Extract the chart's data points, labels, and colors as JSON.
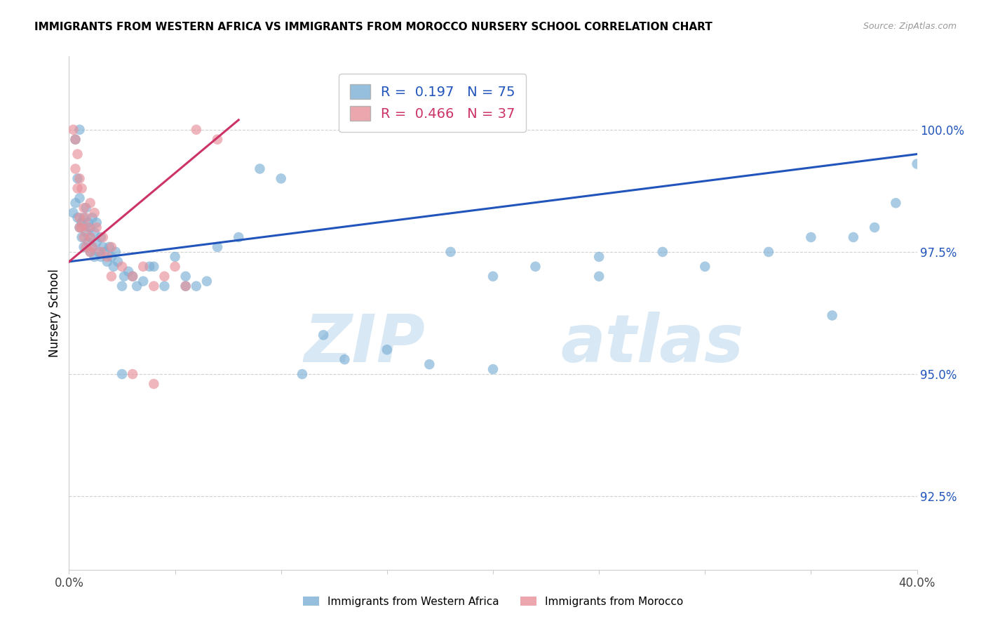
{
  "title": "IMMIGRANTS FROM WESTERN AFRICA VS IMMIGRANTS FROM MOROCCO NURSERY SCHOOL CORRELATION CHART",
  "source": "Source: ZipAtlas.com",
  "ylabel": "Nursery School",
  "yticks": [
    92.5,
    95.0,
    97.5,
    100.0
  ],
  "ytick_labels": [
    "92.5%",
    "95.0%",
    "97.5%",
    "100.0%"
  ],
  "xlim": [
    0.0,
    40.0
  ],
  "ylim": [
    91.0,
    101.5
  ],
  "blue_R": "0.197",
  "blue_N": "75",
  "pink_R": "0.466",
  "pink_N": "37",
  "blue_color": "#7bafd4",
  "pink_color": "#e8909a",
  "blue_line_color": "#2255bb",
  "pink_line_color": "#cc3366",
  "watermark_color": "#d8e8f5",
  "grid_color": "#cccccc",
  "blue_line_x0": 0.0,
  "blue_line_y0": 97.3,
  "blue_line_x1": 40.0,
  "blue_line_y1": 99.5,
  "pink_line_x0": 0.0,
  "pink_line_y0": 97.3,
  "pink_line_x1": 8.0,
  "pink_line_y1": 100.2,
  "blue_x": [
    0.2,
    0.3,
    0.3,
    0.4,
    0.4,
    0.5,
    0.5,
    0.5,
    0.6,
    0.6,
    0.7,
    0.7,
    0.8,
    0.8,
    0.9,
    0.9,
    1.0,
    1.0,
    1.0,
    1.1,
    1.1,
    1.2,
    1.2,
    1.3,
    1.3,
    1.4,
    1.5,
    1.5,
    1.6,
    1.7,
    1.8,
    1.9,
    2.0,
    2.1,
    2.2,
    2.3,
    2.5,
    2.6,
    2.8,
    3.0,
    3.2,
    3.5,
    4.0,
    4.5,
    5.0,
    5.5,
    6.0,
    6.5,
    7.0,
    8.0,
    9.0,
    10.0,
    11.0,
    12.0,
    13.0,
    15.0,
    17.0,
    18.0,
    20.0,
    22.0,
    25.0,
    28.0,
    30.0,
    33.0,
    35.0,
    36.0,
    37.0,
    38.0,
    39.0,
    40.0,
    2.5,
    3.8,
    5.5,
    20.0,
    25.0
  ],
  "blue_y": [
    98.3,
    98.5,
    99.8,
    98.2,
    99.0,
    98.0,
    98.6,
    100.0,
    98.1,
    97.8,
    98.2,
    97.6,
    97.9,
    98.4,
    97.7,
    98.1,
    97.5,
    98.0,
    97.8,
    97.6,
    98.2,
    97.4,
    97.9,
    97.7,
    98.1,
    97.5,
    97.4,
    97.8,
    97.6,
    97.5,
    97.3,
    97.6,
    97.4,
    97.2,
    97.5,
    97.3,
    96.8,
    97.0,
    97.1,
    97.0,
    96.8,
    96.9,
    97.2,
    96.8,
    97.4,
    97.0,
    96.8,
    96.9,
    97.6,
    97.8,
    99.2,
    99.0,
    95.0,
    95.8,
    95.3,
    95.5,
    95.2,
    97.5,
    97.0,
    97.2,
    97.4,
    97.5,
    97.2,
    97.5,
    97.8,
    96.2,
    97.8,
    98.0,
    98.5,
    99.3,
    95.0,
    97.2,
    96.8,
    95.1,
    97.0
  ],
  "pink_x": [
    0.2,
    0.3,
    0.3,
    0.4,
    0.4,
    0.5,
    0.5,
    0.6,
    0.6,
    0.7,
    0.7,
    0.8,
    0.8,
    0.9,
    1.0,
    1.0,
    1.1,
    1.2,
    1.3,
    1.5,
    1.6,
    1.8,
    2.0,
    2.5,
    3.0,
    3.5,
    4.0,
    4.5,
    5.0,
    6.0,
    7.0,
    0.5,
    1.0,
    2.0,
    3.0,
    4.0,
    5.5
  ],
  "pink_y": [
    100.0,
    99.8,
    99.2,
    99.5,
    98.8,
    99.0,
    98.2,
    98.8,
    98.0,
    98.4,
    97.8,
    98.2,
    97.6,
    98.0,
    97.8,
    98.5,
    97.6,
    98.3,
    98.0,
    97.5,
    97.8,
    97.4,
    97.6,
    97.2,
    97.0,
    97.2,
    96.8,
    97.0,
    97.2,
    100.0,
    99.8,
    98.0,
    97.5,
    97.0,
    95.0,
    94.8,
    96.8
  ]
}
